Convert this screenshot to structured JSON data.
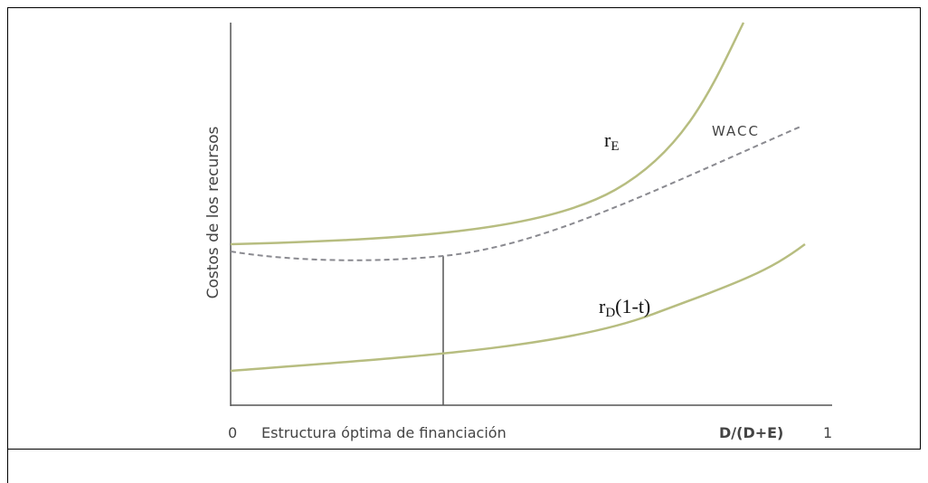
{
  "y_axis_label": "Costos de los recursos",
  "x_axis": {
    "start": "0",
    "label": "Estructura óptima de financiación",
    "variable": "D/(D+E)",
    "end": "1"
  },
  "curves": {
    "equity": {
      "base": "r",
      "sub": "E"
    },
    "wacc": {
      "label": "WACC"
    },
    "debt": {
      "base": "r",
      "sub": "D",
      "rest": "(1-t)"
    }
  }
}
